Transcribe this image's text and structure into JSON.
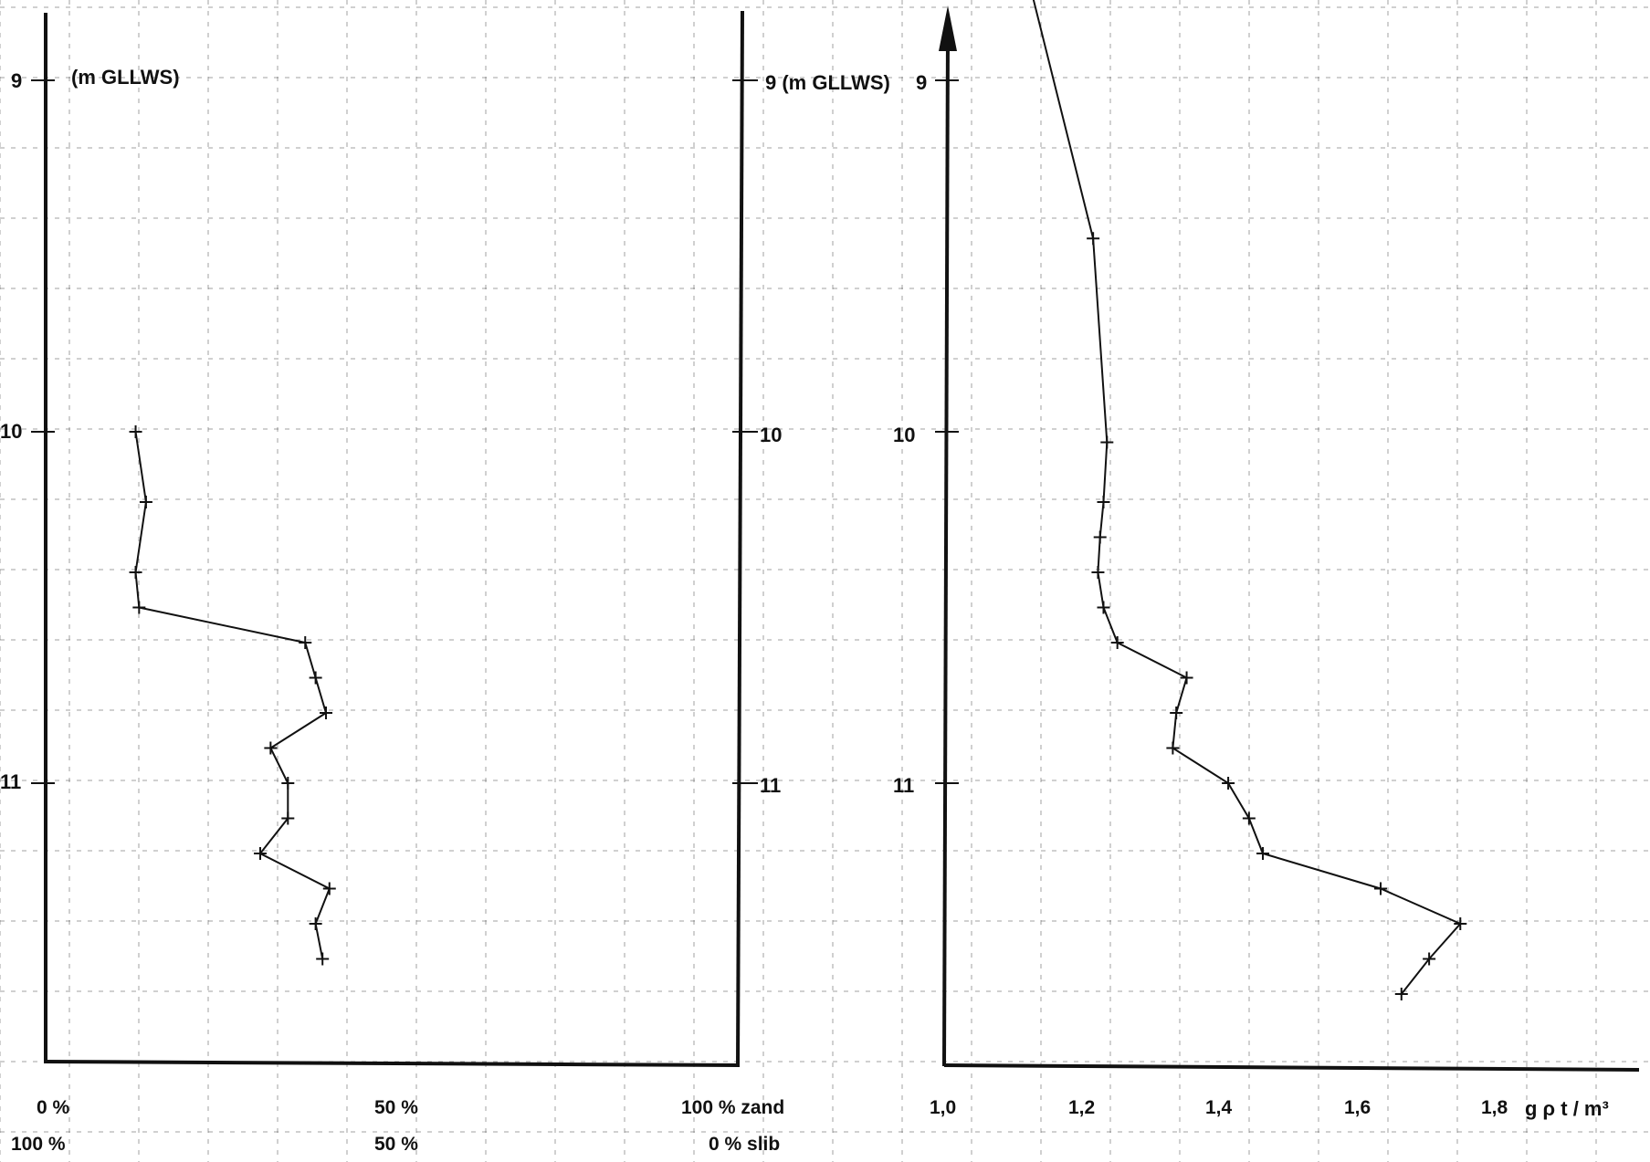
{
  "chart_data": [
    {
      "type": "line",
      "title": "",
      "ylabel": "9 (m GLLWS)",
      "y_axis_unit": "(m GLLWS)",
      "y_ticks": [
        "9",
        "10",
        "11"
      ],
      "ylim": [
        9.0,
        12.0
      ],
      "y_inverted": true,
      "x_ticks_top": [
        "0 %",
        "50 %",
        "100 % zand"
      ],
      "x_ticks_bottom": [
        "100 %",
        "50 %",
        "0 % slib"
      ],
      "xlim": [
        0,
        100
      ],
      "x_unit": "% zand",
      "grid": true,
      "series": [
        {
          "x": [
            13,
            14.5,
            13,
            13.5,
            37.5,
            39,
            40.5,
            32.5,
            35,
            35,
            31,
            41,
            39,
            40
          ],
          "y": [
            10.0,
            10.2,
            10.4,
            10.5,
            10.6,
            10.7,
            10.8,
            10.9,
            11.0,
            11.1,
            11.2,
            11.3,
            11.4,
            11.5
          ]
        }
      ]
    },
    {
      "type": "line",
      "title": "",
      "ylabel": "9 (m GLLWS)",
      "y_axis_unit": "(m GLLWS)",
      "y_ticks": [
        "9",
        "10",
        "11"
      ],
      "ylim": [
        9.0,
        12.0
      ],
      "y_inverted": true,
      "xlabel": "g ρ  t / m³",
      "x_ticks": [
        "1,0",
        "1,2",
        "1,4",
        "1,6",
        "1,8"
      ],
      "xlim": [
        1.0,
        1.95
      ],
      "grid": true,
      "series": [
        {
          "x": [
            1.12,
            1.215,
            1.235,
            1.23,
            1.225,
            1.222,
            1.23,
            1.25,
            1.35,
            1.335,
            1.33,
            1.41,
            1.44,
            1.46,
            1.63,
            1.745,
            1.7,
            1.66
          ],
          "y": [
            8.7,
            9.45,
            10.03,
            10.2,
            10.3,
            10.4,
            10.5,
            10.6,
            10.7,
            10.8,
            10.9,
            11.0,
            11.1,
            11.2,
            11.3,
            11.4,
            11.5,
            11.6
          ]
        }
      ]
    }
  ]
}
